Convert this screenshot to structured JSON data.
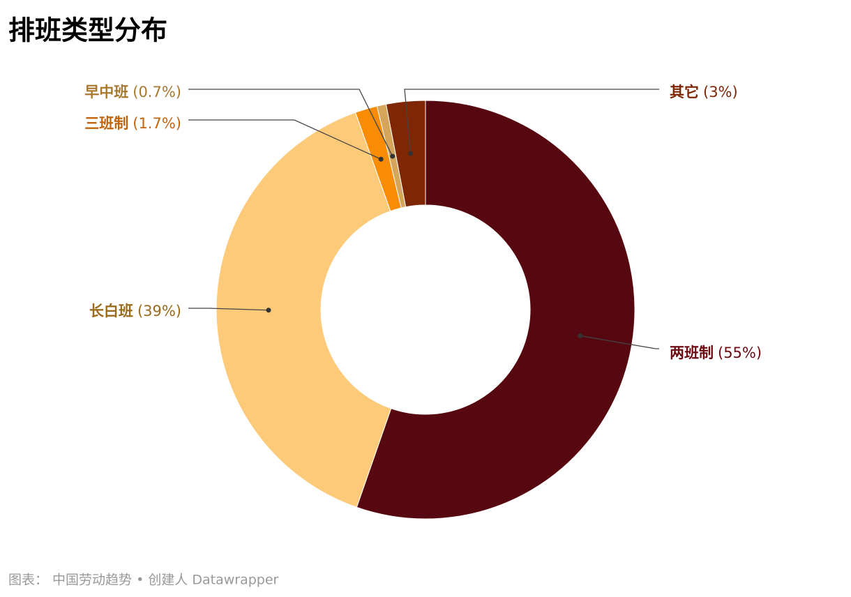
{
  "chart_data": {
    "type": "donut",
    "title": "排班类型分布",
    "categories": [
      "两班制",
      "长白班",
      "三班制",
      "早中班",
      "其它"
    ],
    "values": [
      55,
      39,
      1.7,
      0.7,
      3
    ],
    "value_labels": [
      "(55%)",
      "(39%)",
      "(1.7%)",
      "(0.7%)",
      "(3%)"
    ],
    "colors": [
      "#56070f",
      "#fdca7a",
      "#f88c05",
      "#d4a55b",
      "#7f2704"
    ],
    "label_colors": [
      "#6b0b12",
      "#9a6b1a",
      "#c2640c",
      "#a8782f",
      "#7f2704"
    ],
    "source": "图表： 中国劳动趋势 • 创建人 Datawrapper"
  }
}
